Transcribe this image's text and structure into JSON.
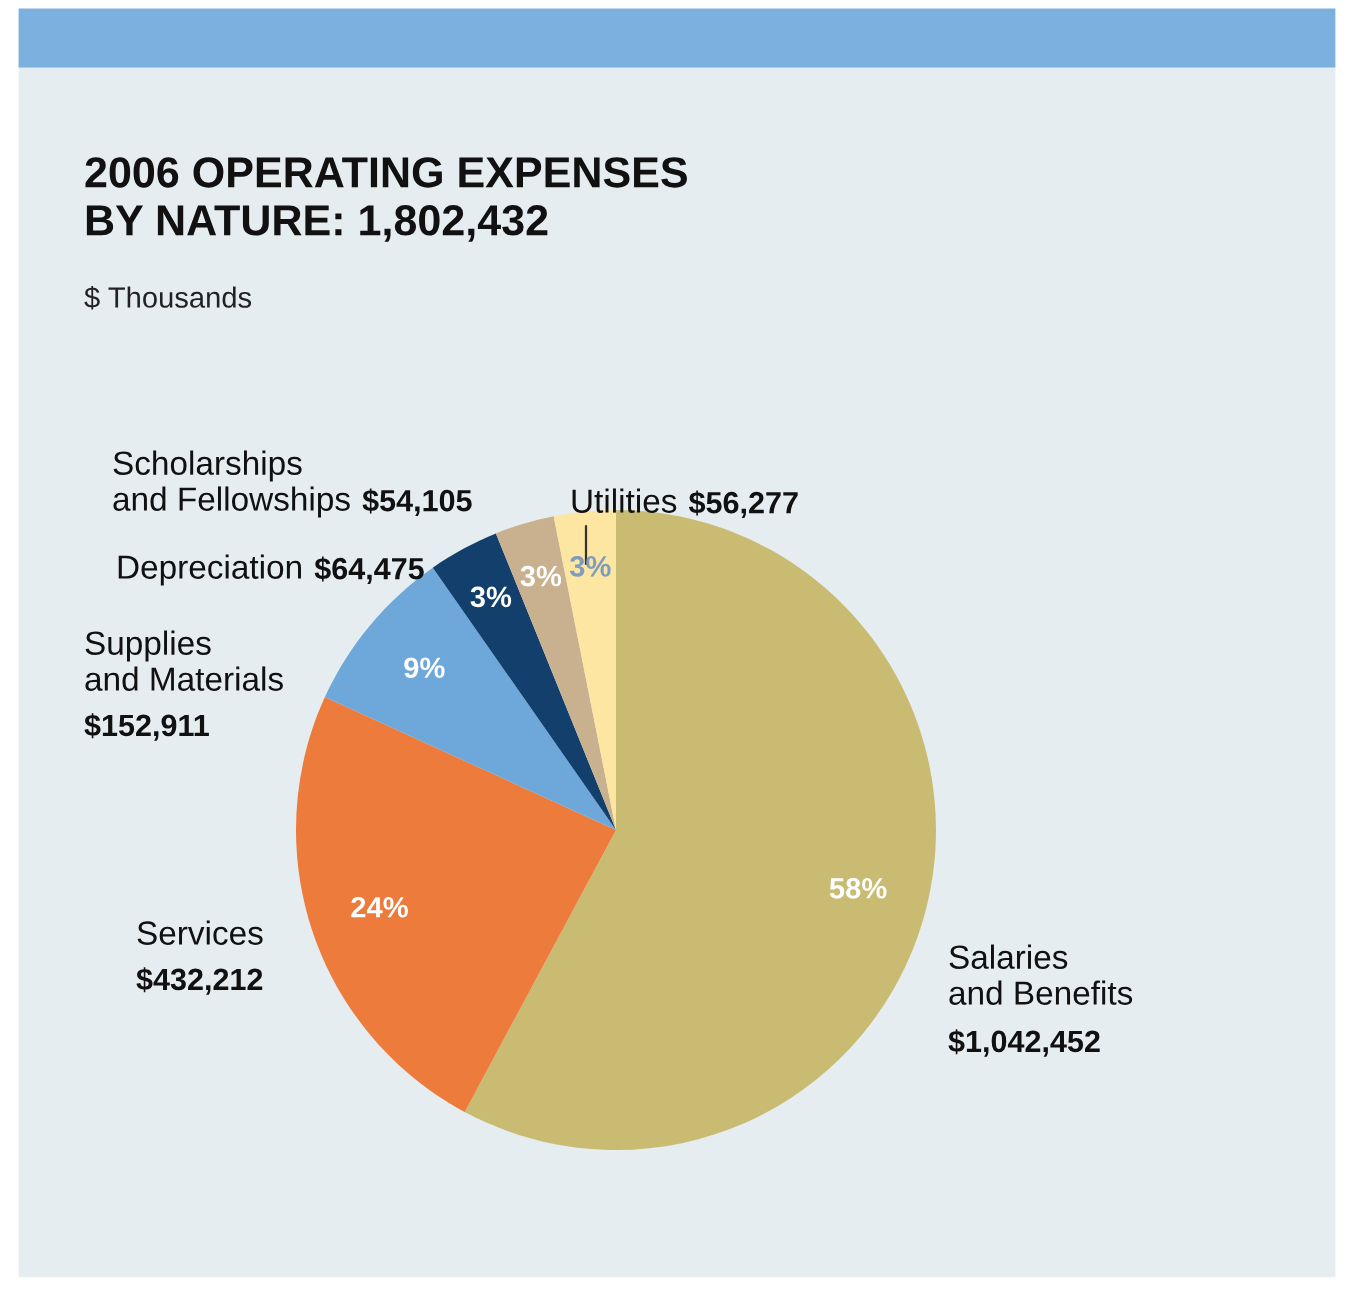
{
  "chart_data": {
    "type": "pie",
    "title": "2006 OPERATING EXPENSES\nBY NATURE: 1,802,432",
    "subtitle": "$ Thousands",
    "categories": [
      "Salaries\nand Benefits",
      "Services",
      "Supplies\nand Materials",
      "Depreciation",
      "Scholarships\nand Fellowships",
      "Utilities"
    ],
    "values": [
      1042452,
      432212,
      152911,
      64475,
      54105,
      56277
    ],
    "value_labels": [
      "$1,042,452",
      "$432,212",
      "$152,911",
      "$64,475",
      "$54,105",
      "$56,277"
    ],
    "colors": [
      "#c9bc72",
      "#ec7b3c",
      "#6ea8da",
      "#123f6b",
      "#c9b08e",
      "#fde5a2"
    ],
    "annotations": [
      "58%",
      "24%",
      "9%",
      "3%",
      "3%",
      "3%"
    ]
  }
}
